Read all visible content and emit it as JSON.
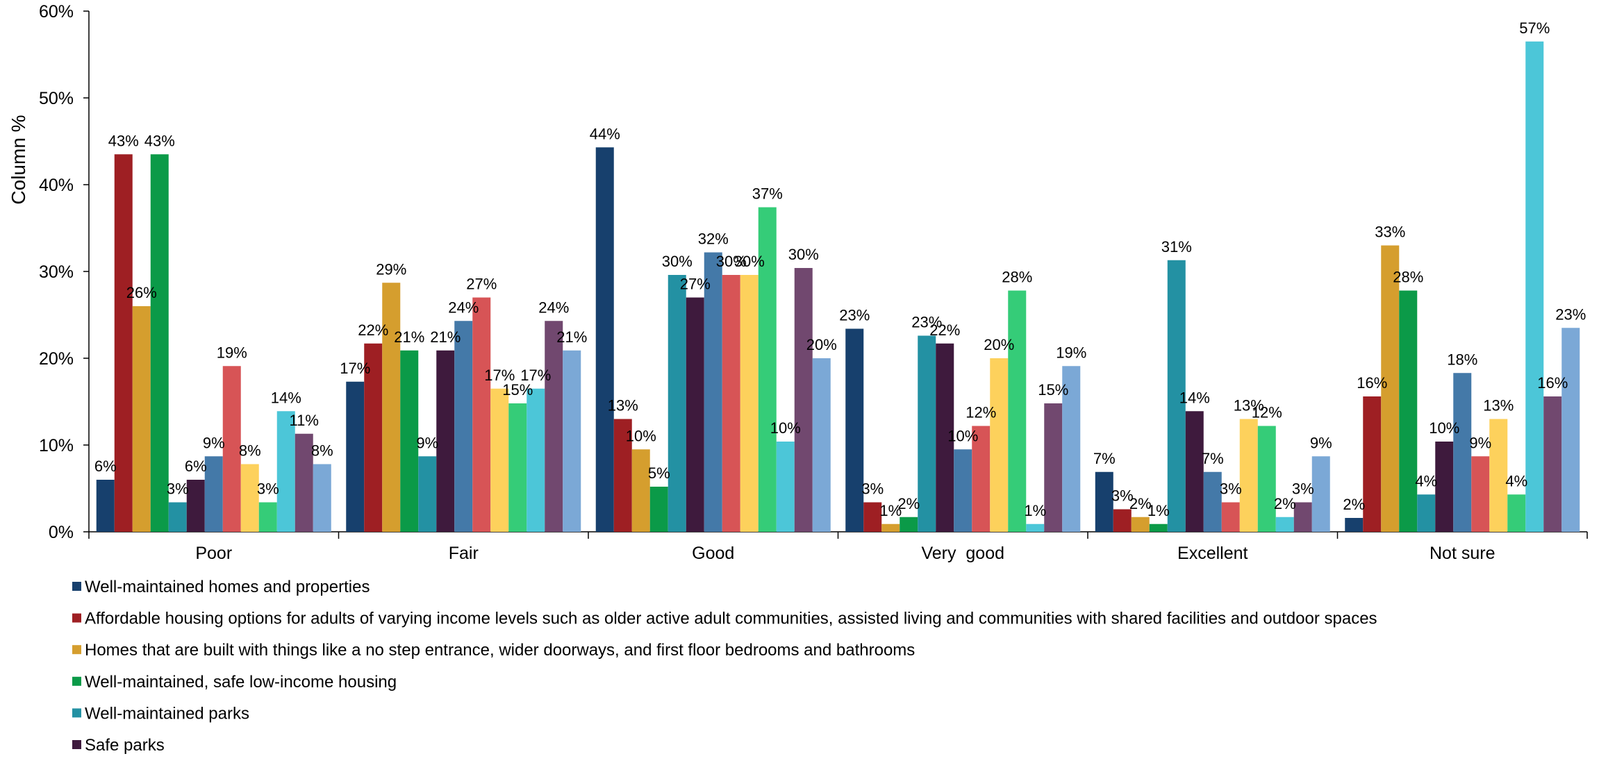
{
  "chart_data": {
    "type": "bar",
    "title": "",
    "xlabel": "",
    "ylabel": "Column %",
    "ylim": [
      0,
      60
    ],
    "yticks": [
      "0%",
      "10%",
      "20%",
      "30%",
      "40%",
      "50%",
      "60%"
    ],
    "grid": false,
    "legend_position": "bottom",
    "categories": [
      "Poor",
      "Fair",
      "Good",
      "Very  good",
      "Excellent",
      "Not sure"
    ],
    "series": [
      {
        "name": "Well-maintained homes and properties",
        "color": "#17406D",
        "values": [
          6,
          17.3,
          44.3,
          23.4,
          6.9,
          1.6
        ],
        "labels": [
          "6%",
          "17%",
          "44%",
          "23%",
          "7%",
          "2%"
        ]
      },
      {
        "name": "Affordable housing options for adults of varying income levels such as older active adult communities, assisted living and communities with shared facilities and outdoor spaces",
        "color": "#9E1F23",
        "values": [
          43.5,
          21.7,
          13,
          3.4,
          2.6,
          15.6
        ],
        "labels": [
          "43%",
          "22%",
          "13%",
          "3%",
          "3%",
          "16%"
        ]
      },
      {
        "name": "Homes that are built with things like a no step entrance, wider doorways, and first floor bedrooms and bathrooms",
        "color": "#D59E2E",
        "values": [
          26,
          28.7,
          9.5,
          0.9,
          1.7,
          33
        ],
        "labels": [
          "26%",
          "29%",
          "10%",
          "1%",
          "2%",
          "33%"
        ]
      },
      {
        "name": "Well-maintained, safe low-income housing",
        "color": "#0B9A48",
        "values": [
          43.5,
          20.9,
          5.2,
          1.7,
          0.9,
          27.8
        ],
        "labels": [
          "43%",
          "21%",
          "5%",
          "2%",
          "1%",
          "28%"
        ]
      },
      {
        "name": "Well-maintained parks",
        "color": "#2391A3",
        "values": [
          3.4,
          8.7,
          29.6,
          22.6,
          31.3,
          4.3
        ],
        "labels": [
          "3%",
          "9%",
          "30%",
          "23%",
          "31%",
          "4%"
        ]
      },
      {
        "name": "Safe parks",
        "color": "#3E1A3D",
        "values": [
          6,
          20.9,
          27,
          21.7,
          13.9,
          10.4
        ],
        "labels": [
          "6%",
          "21%",
          "27%",
          "22%",
          "14%",
          "10%"
        ]
      },
      {
        "color": "#4479A8",
        "values": [
          8.7,
          24.3,
          32.2,
          9.5,
          6.9,
          18.3
        ],
        "labels": [
          "9%",
          "24%",
          "32%",
          "10%",
          "7%",
          "18%"
        ]
      },
      {
        "color": "#D75456",
        "values": [
          19.1,
          27,
          29.6,
          12.2,
          3.4,
          8.7
        ],
        "labels": [
          "19%",
          "27%",
          "30%",
          "12%",
          "3%",
          "9%"
        ]
      },
      {
        "color": "#FDD15C",
        "values": [
          7.8,
          16.5,
          29.6,
          20,
          13,
          13
        ],
        "labels": [
          "8%",
          "17%",
          "30%",
          "20%",
          "13%",
          "13%"
        ]
      },
      {
        "color": "#35CC78",
        "values": [
          3.4,
          14.8,
          37.4,
          27.8,
          12.2,
          4.3
        ],
        "labels": [
          "3%",
          "15%",
          "37%",
          "28%",
          "12%",
          "4%"
        ]
      },
      {
        "color": "#4CC6D8",
        "values": [
          13.9,
          16.5,
          10.4,
          0.9,
          1.7,
          56.5
        ],
        "labels": [
          "14%",
          "17%",
          "10%",
          "1%",
          "2%",
          "57%"
        ]
      },
      {
        "color": "#71486F",
        "values": [
          11.3,
          24.3,
          30.4,
          14.8,
          3.4,
          15.6
        ],
        "labels": [
          "11%",
          "24%",
          "30%",
          "15%",
          "3%",
          "16%"
        ]
      },
      {
        "color": "#7BA8D6",
        "values": [
          7.8,
          20.9,
          20,
          19.1,
          8.7,
          23.5
        ],
        "labels": [
          "8%",
          "21%",
          "20%",
          "19%",
          "9%",
          "23%"
        ]
      }
    ]
  }
}
